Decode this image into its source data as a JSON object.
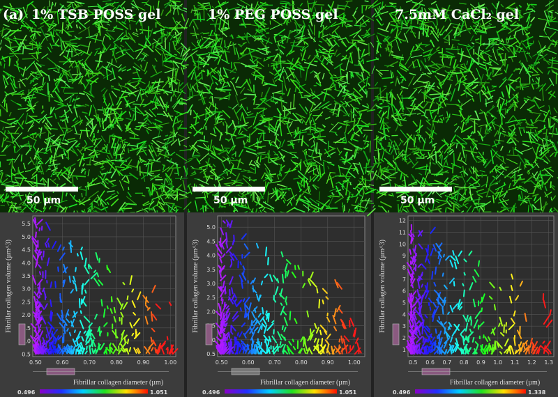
{
  "figure_label": "(a)",
  "panels": [
    {
      "title": "1% TSB POSS gel",
      "scale_bar_label": "50 µm",
      "chart": {
        "type": "scatter",
        "x_label": "Fibrillar collagen diameter (µm)",
        "y_label": "Fibrillar collagen volume (µm^3)",
        "xlim": [
          0.49,
          1.02
        ],
        "ylim": [
          0.4,
          5.8
        ],
        "xticks": [
          {
            "value": 0.5,
            "label": "0.50"
          },
          {
            "value": 0.6,
            "label": "0.60"
          },
          {
            "value": 0.7,
            "label": "0.70"
          },
          {
            "value": 0.8,
            "label": "0.80"
          },
          {
            "value": 0.9,
            "label": "0.90"
          },
          {
            "value": 1,
            "label": "1.00"
          }
        ],
        "yticks": [
          0.5,
          {
            "value": 1,
            "label": "1.0"
          },
          1.5,
          {
            "value": 2,
            "label": "2.0"
          },
          2.5,
          {
            "value": 3,
            "label": "3.0"
          },
          3.5,
          {
            "value": 4,
            "label": "4.0"
          },
          4.5,
          {
            "value": 5,
            "label": "5.0"
          },
          5.5
        ],
        "colorbar": {
          "min": 0.496,
          "max": 1.051
        }
      }
    },
    {
      "title": "1% PEG POSS gel",
      "scale_bar_label": "50 µm",
      "chart": {
        "type": "scatter",
        "x_label": "Fibrillar collagen diameter (µm)",
        "y_label": "Fibrillar collagen volume (µm^3)",
        "xlim": [
          0.485,
          1.04
        ],
        "ylim": [
          0.4,
          5.4
        ],
        "xticks": [
          {
            "value": 0.5,
            "label": "0.50"
          },
          {
            "value": 0.6,
            "label": "0.60"
          },
          {
            "value": 0.7,
            "label": "0.70"
          },
          {
            "value": 0.8,
            "label": "0.80"
          },
          {
            "value": 0.9,
            "label": "0.90"
          },
          {
            "value": 1,
            "label": "1.00"
          }
        ],
        "yticks": [
          0.5,
          {
            "value": 1,
            "label": "1.0"
          },
          1.5,
          {
            "value": 2,
            "label": "2.0"
          },
          2.5,
          {
            "value": 3,
            "label": "3.0"
          },
          3.5,
          {
            "value": 4,
            "label": "4.0"
          },
          4.5,
          {
            "value": 5,
            "label": "5.0"
          }
        ],
        "colorbar": {
          "min": 0.496,
          "max": 1.051
        }
      }
    },
    {
      "title": "7.5mM CaCl₂ gel",
      "scale_bar_label": "50 µm",
      "chart": {
        "type": "scatter",
        "x_label": "Fibrillar collagen diameter (µm)",
        "y_label": "Fibrillar collagen volume (µm^3)",
        "xlim": [
          0.47,
          1.33
        ],
        "ylim": [
          0.4,
          12.4
        ],
        "xticks": [
          0.5,
          0.6,
          0.7,
          0.8,
          0.9,
          {
            "value": 1,
            "label": "1.0"
          },
          1.1,
          1.2,
          1.3
        ],
        "yticks": [
          1,
          2,
          3,
          4,
          5,
          6,
          7,
          8,
          9,
          10,
          11,
          12
        ],
        "colorbar": {
          "min": 0.496,
          "max": 1.338
        }
      }
    }
  ]
}
